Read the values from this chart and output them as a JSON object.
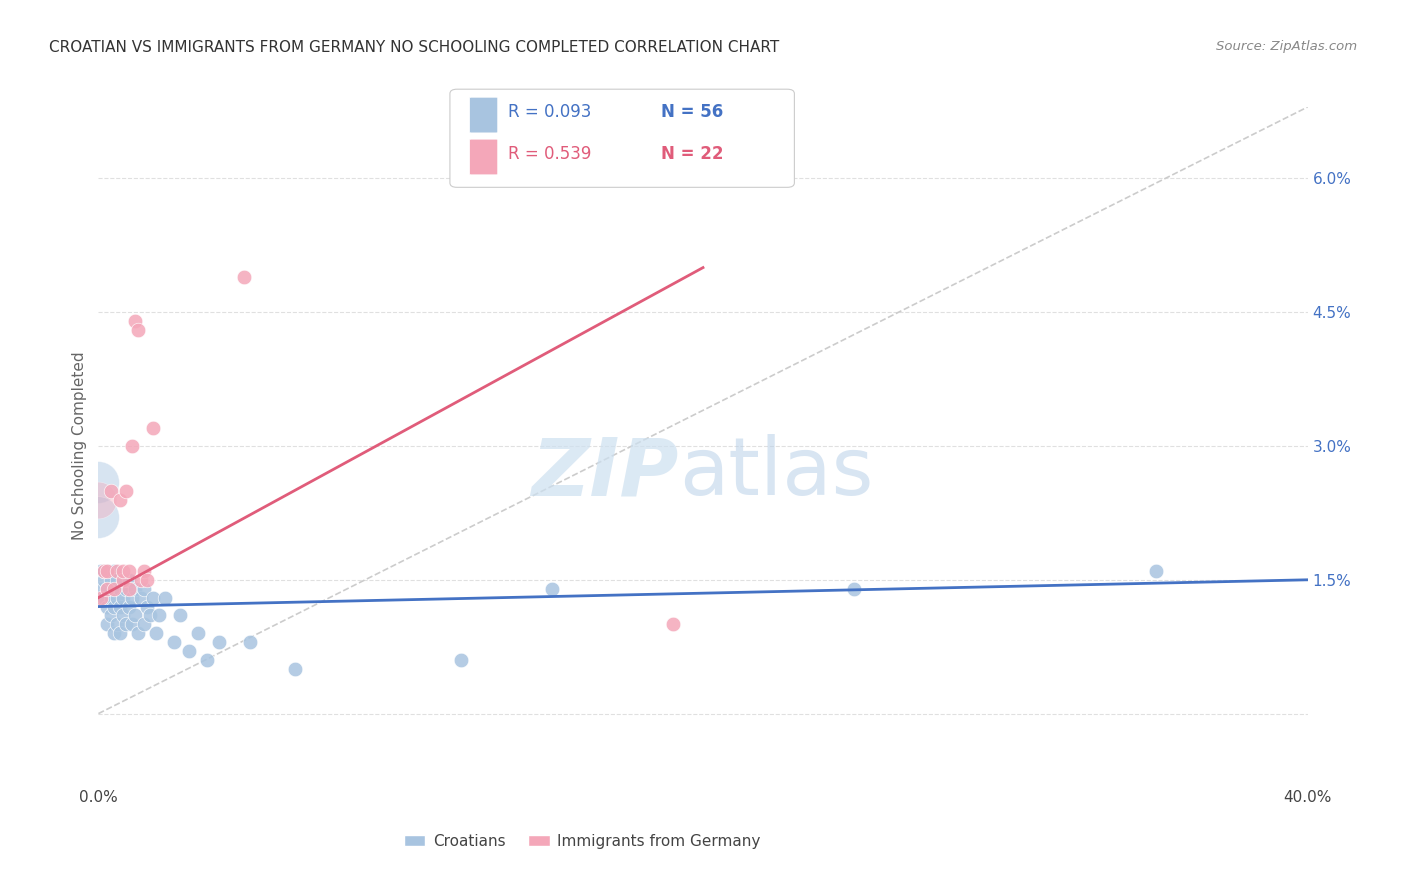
{
  "title": "CROATIAN VS IMMIGRANTS FROM GERMANY NO SCHOOLING COMPLETED CORRELATION CHART",
  "source": "Source: ZipAtlas.com",
  "ylabel": "No Schooling Completed",
  "xlim": [
    0.0,
    0.4
  ],
  "ylim": [
    -0.008,
    0.068
  ],
  "croatians": {
    "R": 0.093,
    "N": 56,
    "color": "#a8c4e0",
    "line_color": "#4472c4",
    "x": [
      0.0005,
      0.001,
      0.001,
      0.002,
      0.002,
      0.002,
      0.003,
      0.003,
      0.003,
      0.003,
      0.004,
      0.004,
      0.004,
      0.005,
      0.005,
      0.005,
      0.005,
      0.006,
      0.006,
      0.006,
      0.007,
      0.007,
      0.007,
      0.008,
      0.008,
      0.008,
      0.009,
      0.009,
      0.01,
      0.01,
      0.011,
      0.011,
      0.012,
      0.012,
      0.013,
      0.014,
      0.015,
      0.015,
      0.016,
      0.017,
      0.018,
      0.019,
      0.02,
      0.022,
      0.025,
      0.027,
      0.03,
      0.033,
      0.036,
      0.04,
      0.05,
      0.065,
      0.12,
      0.15,
      0.25,
      0.35
    ],
    "y": [
      0.013,
      0.014,
      0.016,
      0.013,
      0.015,
      0.016,
      0.01,
      0.012,
      0.014,
      0.016,
      0.011,
      0.013,
      0.015,
      0.009,
      0.012,
      0.014,
      0.016,
      0.01,
      0.013,
      0.015,
      0.009,
      0.012,
      0.014,
      0.011,
      0.013,
      0.015,
      0.01,
      0.014,
      0.012,
      0.015,
      0.01,
      0.013,
      0.011,
      0.014,
      0.009,
      0.013,
      0.01,
      0.014,
      0.012,
      0.011,
      0.013,
      0.009,
      0.011,
      0.013,
      0.008,
      0.011,
      0.007,
      0.009,
      0.006,
      0.008,
      0.008,
      0.005,
      0.006,
      0.014,
      0.014,
      0.016
    ]
  },
  "immigrants": {
    "R": 0.539,
    "N": 22,
    "color": "#f4a7b9",
    "line_color": "#e05c7a",
    "x": [
      0.001,
      0.002,
      0.003,
      0.003,
      0.004,
      0.005,
      0.006,
      0.007,
      0.008,
      0.008,
      0.009,
      0.01,
      0.01,
      0.011,
      0.012,
      0.013,
      0.014,
      0.015,
      0.016,
      0.018,
      0.19,
      0.048
    ],
    "y": [
      0.013,
      0.016,
      0.014,
      0.016,
      0.025,
      0.014,
      0.016,
      0.024,
      0.015,
      0.016,
      0.025,
      0.014,
      0.016,
      0.03,
      0.044,
      0.043,
      0.015,
      0.016,
      0.015,
      0.032,
      0.01,
      0.049
    ]
  },
  "diagonal_line_color": "#cccccc",
  "watermark_zip_color": "#cde0f0",
  "watermark_atlas_color": "#b8d0e8",
  "background_color": "#ffffff",
  "grid_color": "#e0e0e0",
  "ytick_vals": [
    0.0,
    0.015,
    0.03,
    0.045,
    0.06
  ],
  "ytick_labels": [
    "",
    "1.5%",
    "3.0%",
    "4.5%",
    "6.0%"
  ],
  "xtick_vals": [
    0.0,
    0.05,
    0.1,
    0.15,
    0.2,
    0.25,
    0.3,
    0.35,
    0.4
  ],
  "xtick_labels": [
    "0.0%",
    "",
    "",
    "",
    "",
    "",
    "",
    "",
    "40.0%"
  ],
  "legend_bottom": [
    "Croatians",
    "Immigrants from Germany"
  ],
  "stats_r1": "R = 0.093",
  "stats_n1": "N = 56",
  "stats_r2": "R = 0.539",
  "stats_n2": "N = 22"
}
